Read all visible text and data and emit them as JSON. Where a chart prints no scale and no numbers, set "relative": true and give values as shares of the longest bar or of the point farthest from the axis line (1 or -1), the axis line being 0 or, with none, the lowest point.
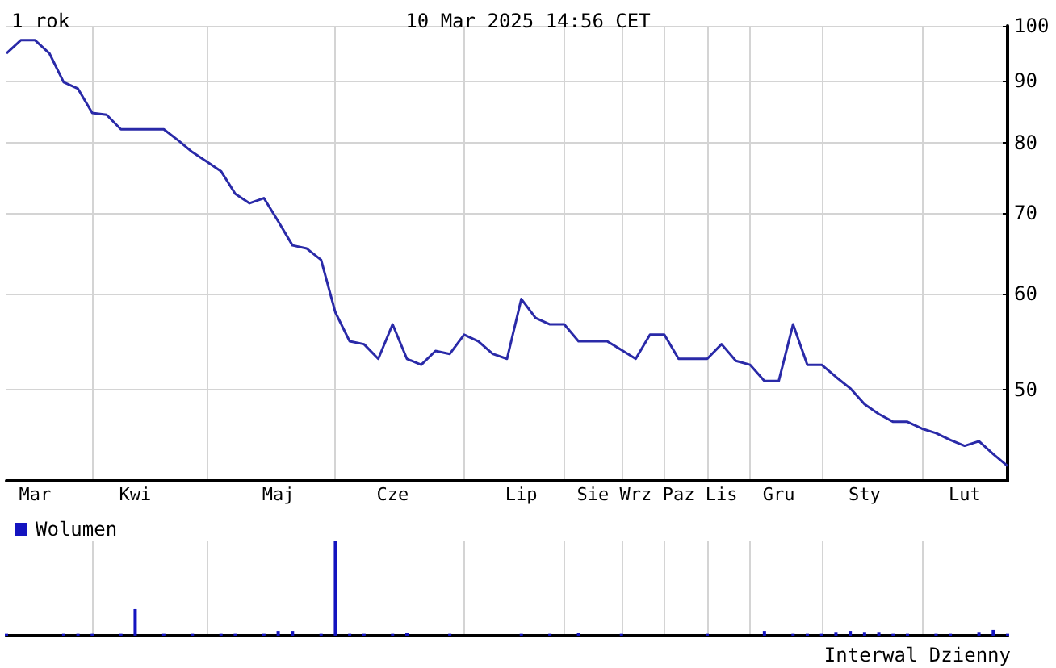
{
  "chart_data": [
    {
      "type": "line",
      "title": "1 rok",
      "subtitle": "10 Mar 2025 14:56 CET",
      "categories": [
        null,
        null,
        "Mar",
        null,
        null,
        null,
        null,
        null,
        null,
        "Kwi",
        null,
        null,
        null,
        null,
        null,
        null,
        null,
        null,
        null,
        "Maj",
        null,
        null,
        null,
        null,
        null,
        null,
        null,
        "Cze",
        null,
        null,
        null,
        null,
        null,
        null,
        null,
        null,
        "Lip",
        null,
        null,
        null,
        null,
        "Sie",
        null,
        null,
        "Wrz",
        null,
        null,
        "Paz",
        null,
        null,
        "Lis",
        null,
        null,
        null,
        "Gru",
        null,
        null,
        null,
        null,
        null,
        "Sty",
        null,
        null,
        null,
        null,
        null,
        null,
        "Lut",
        null,
        null,
        null
      ],
      "series": [
        {
          "color": "#2a2aa8",
          "values": [
            94.9,
            97.3,
            97.3,
            94.9,
            89.8,
            88.7,
            84.7,
            84.4,
            82.1,
            82.1,
            82.1,
            82.1,
            80.4,
            78.6,
            77.2,
            75.8,
            72.6,
            71.3,
            72.0,
            68.9,
            65.8,
            65.4,
            64.0,
            57.9,
            54.8,
            54.5,
            53.0,
            56.6,
            53.0,
            52.4,
            53.8,
            53.5,
            55.5,
            54.8,
            53.5,
            53.0,
            59.4,
            57.3,
            56.6,
            56.6,
            54.8,
            54.8,
            54.8,
            53.9,
            53.0,
            55.5,
            55.5,
            53.0,
            53.0,
            53.0,
            54.5,
            52.8,
            52.4,
            50.8,
            50.8,
            56.6,
            52.4,
            52.4,
            51.2,
            50.1,
            48.6,
            47.7,
            47.0,
            47.0,
            46.4,
            46.0,
            45.4,
            44.9,
            45.3,
            44.2,
            43.2
          ]
        }
      ],
      "log": "y",
      "ylim": [
        42,
        100
      ],
      "yticks": [
        50,
        60,
        70,
        80,
        90,
        100
      ],
      "grid": true,
      "marker": "none"
    },
    {
      "type": "bar",
      "relative": true,
      "legend": "top left",
      "grid": "x",
      "annotations": [
        "Interwal Dzienny"
      ],
      "categories": [
        null,
        null,
        null,
        null,
        null,
        null,
        null,
        null,
        null,
        null,
        null,
        null,
        null,
        null,
        null,
        null,
        null,
        null,
        null,
        null,
        null,
        null,
        null,
        null,
        null,
        null,
        null,
        null,
        null,
        null,
        null,
        null,
        null,
        null,
        null,
        null,
        null,
        null,
        null,
        null,
        null,
        null,
        null,
        null,
        null,
        null,
        null,
        null,
        null,
        null,
        null,
        null,
        null,
        null,
        null,
        null,
        null,
        null,
        null,
        null,
        null,
        null,
        null,
        null,
        null,
        null,
        null,
        null,
        null,
        null,
        null
      ],
      "series": [
        {
          "name": "Wolumen",
          "color": "#1414c0",
          "values": [
            0.02,
            null,
            null,
            null,
            0.02,
            0.02,
            0.02,
            null,
            0.02,
            0.28,
            null,
            0.02,
            null,
            0.02,
            null,
            0.02,
            0.02,
            null,
            0.02,
            0.05,
            0.05,
            null,
            0.02,
            1,
            0.02,
            0.02,
            null,
            0.02,
            0.03,
            null,
            null,
            0.02,
            null,
            null,
            null,
            null,
            0.02,
            null,
            0.02,
            null,
            0.03,
            null,
            null,
            0.02,
            null,
            null,
            null,
            null,
            null,
            0.02,
            null,
            null,
            null,
            0.05,
            null,
            0.02,
            0.02,
            0.02,
            0.04,
            0.05,
            0.04,
            0.04,
            0.02,
            0.02,
            null,
            0.02,
            0.02,
            null,
            0.04,
            0.06,
            0.02
          ]
        }
      ]
    }
  ]
}
